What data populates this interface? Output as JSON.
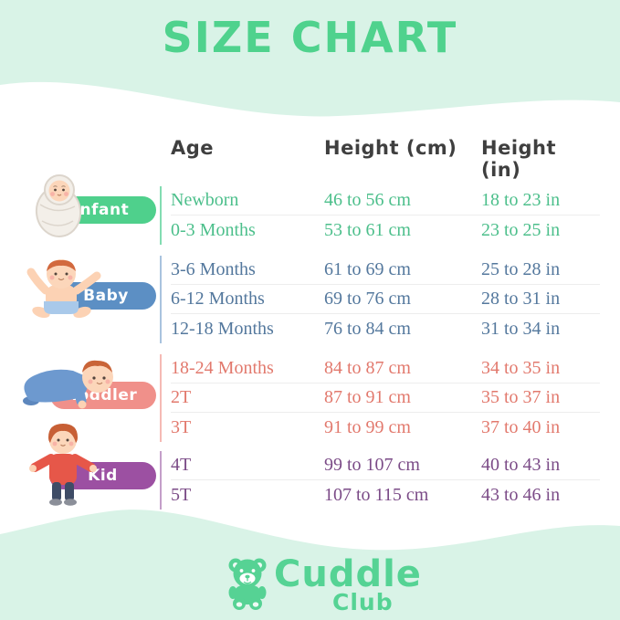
{
  "title": "SIZE CHART",
  "colors": {
    "background_mint": "#d9f3e7",
    "card_white": "#ffffff",
    "title_green": "#4fd28d",
    "header_text": "#3f3f3f",
    "row_separator": "#ededed",
    "logo_green": "#55d394"
  },
  "table": {
    "headers": [
      "Age",
      "Height (cm)",
      "Height (in)"
    ],
    "groups": [
      {
        "label": "Infant",
        "pill_color": "#4fd08c",
        "line_color": "#83dcb2",
        "text_color": "#4cbf8b",
        "illustration": "swaddled-newborn-baby",
        "rows": [
          [
            "Newborn",
            "46 to 56 cm",
            "18 to 23 in"
          ],
          [
            "0-3 Months",
            "53 to 61 cm",
            "23 to 25 in"
          ]
        ]
      },
      {
        "label": "Baby",
        "pill_color": "#5c8fc4",
        "line_color": "#a9c3de",
        "text_color": "#54789d",
        "illustration": "sitting-baby-with-diaper",
        "rows": [
          [
            "3-6 Months",
            "61 to 69 cm",
            "25 to 28 in"
          ],
          [
            "6-12 Months",
            "69 to 76 cm",
            "28 to 31 in"
          ],
          [
            "12-18 Months",
            "76 to 84 cm",
            "31 to 34 in"
          ]
        ]
      },
      {
        "label": "Toddler",
        "pill_color": "#f0908a",
        "line_color": "#f5bab4",
        "text_color": "#e2796d",
        "illustration": "crawling-toddler",
        "rows": [
          [
            "18-24 Months",
            "84 to 87 cm",
            "34 to 35 in"
          ],
          [
            "2T",
            "87 to 91 cm",
            "35 to 37 in"
          ],
          [
            "3T",
            "91 to 99 cm",
            "37 to 40 in"
          ]
        ]
      },
      {
        "label": "Kid",
        "pill_color": "#9c50a2",
        "line_color": "#c49fc9",
        "text_color": "#7b4b87",
        "illustration": "standing-kid",
        "rows": [
          [
            "4T",
            "99 to 107 cm",
            "40 to 43 in"
          ],
          [
            "5T",
            "107 to 115 cm",
            "43 to 46 in"
          ]
        ]
      }
    ]
  },
  "footer": {
    "brand_name": "Cuddle",
    "brand_sub": "Club",
    "logo_icon": "teddy-bear-icon"
  },
  "chart_data": {
    "type": "table",
    "title": "SIZE CHART",
    "columns": [
      "Age",
      "Height (cm)",
      "Height (in)"
    ],
    "row_groups": [
      {
        "group": "Infant",
        "rows": [
          {
            "age": "Newborn",
            "height_cm": "46 to 56 cm",
            "height_in": "18 to 23 in"
          },
          {
            "age": "0-3 Months",
            "height_cm": "53 to 61 cm",
            "height_in": "23 to 25 in"
          }
        ]
      },
      {
        "group": "Baby",
        "rows": [
          {
            "age": "3-6 Months",
            "height_cm": "61 to 69 cm",
            "height_in": "25 to 28 in"
          },
          {
            "age": "6-12 Months",
            "height_cm": "69 to 76 cm",
            "height_in": "28 to 31 in"
          },
          {
            "age": "12-18 Months",
            "height_cm": "76 to 84 cm",
            "height_in": "31 to 34 in"
          }
        ]
      },
      {
        "group": "Toddler",
        "rows": [
          {
            "age": "18-24 Months",
            "height_cm": "84 to 87 cm",
            "height_in": "34 to 35 in"
          },
          {
            "age": "2T",
            "height_cm": "87 to 91 cm",
            "height_in": "35 to 37 in"
          },
          {
            "age": "3T",
            "height_cm": "91 to 99 cm",
            "height_in": "37 to 40 in"
          }
        ]
      },
      {
        "group": "Kid",
        "rows": [
          {
            "age": "4T",
            "height_cm": "99 to 107 cm",
            "height_in": "40 to 43 in"
          },
          {
            "age": "5T",
            "height_cm": "107 to 115 cm",
            "height_in": "43 to 46 in"
          }
        ]
      }
    ]
  }
}
